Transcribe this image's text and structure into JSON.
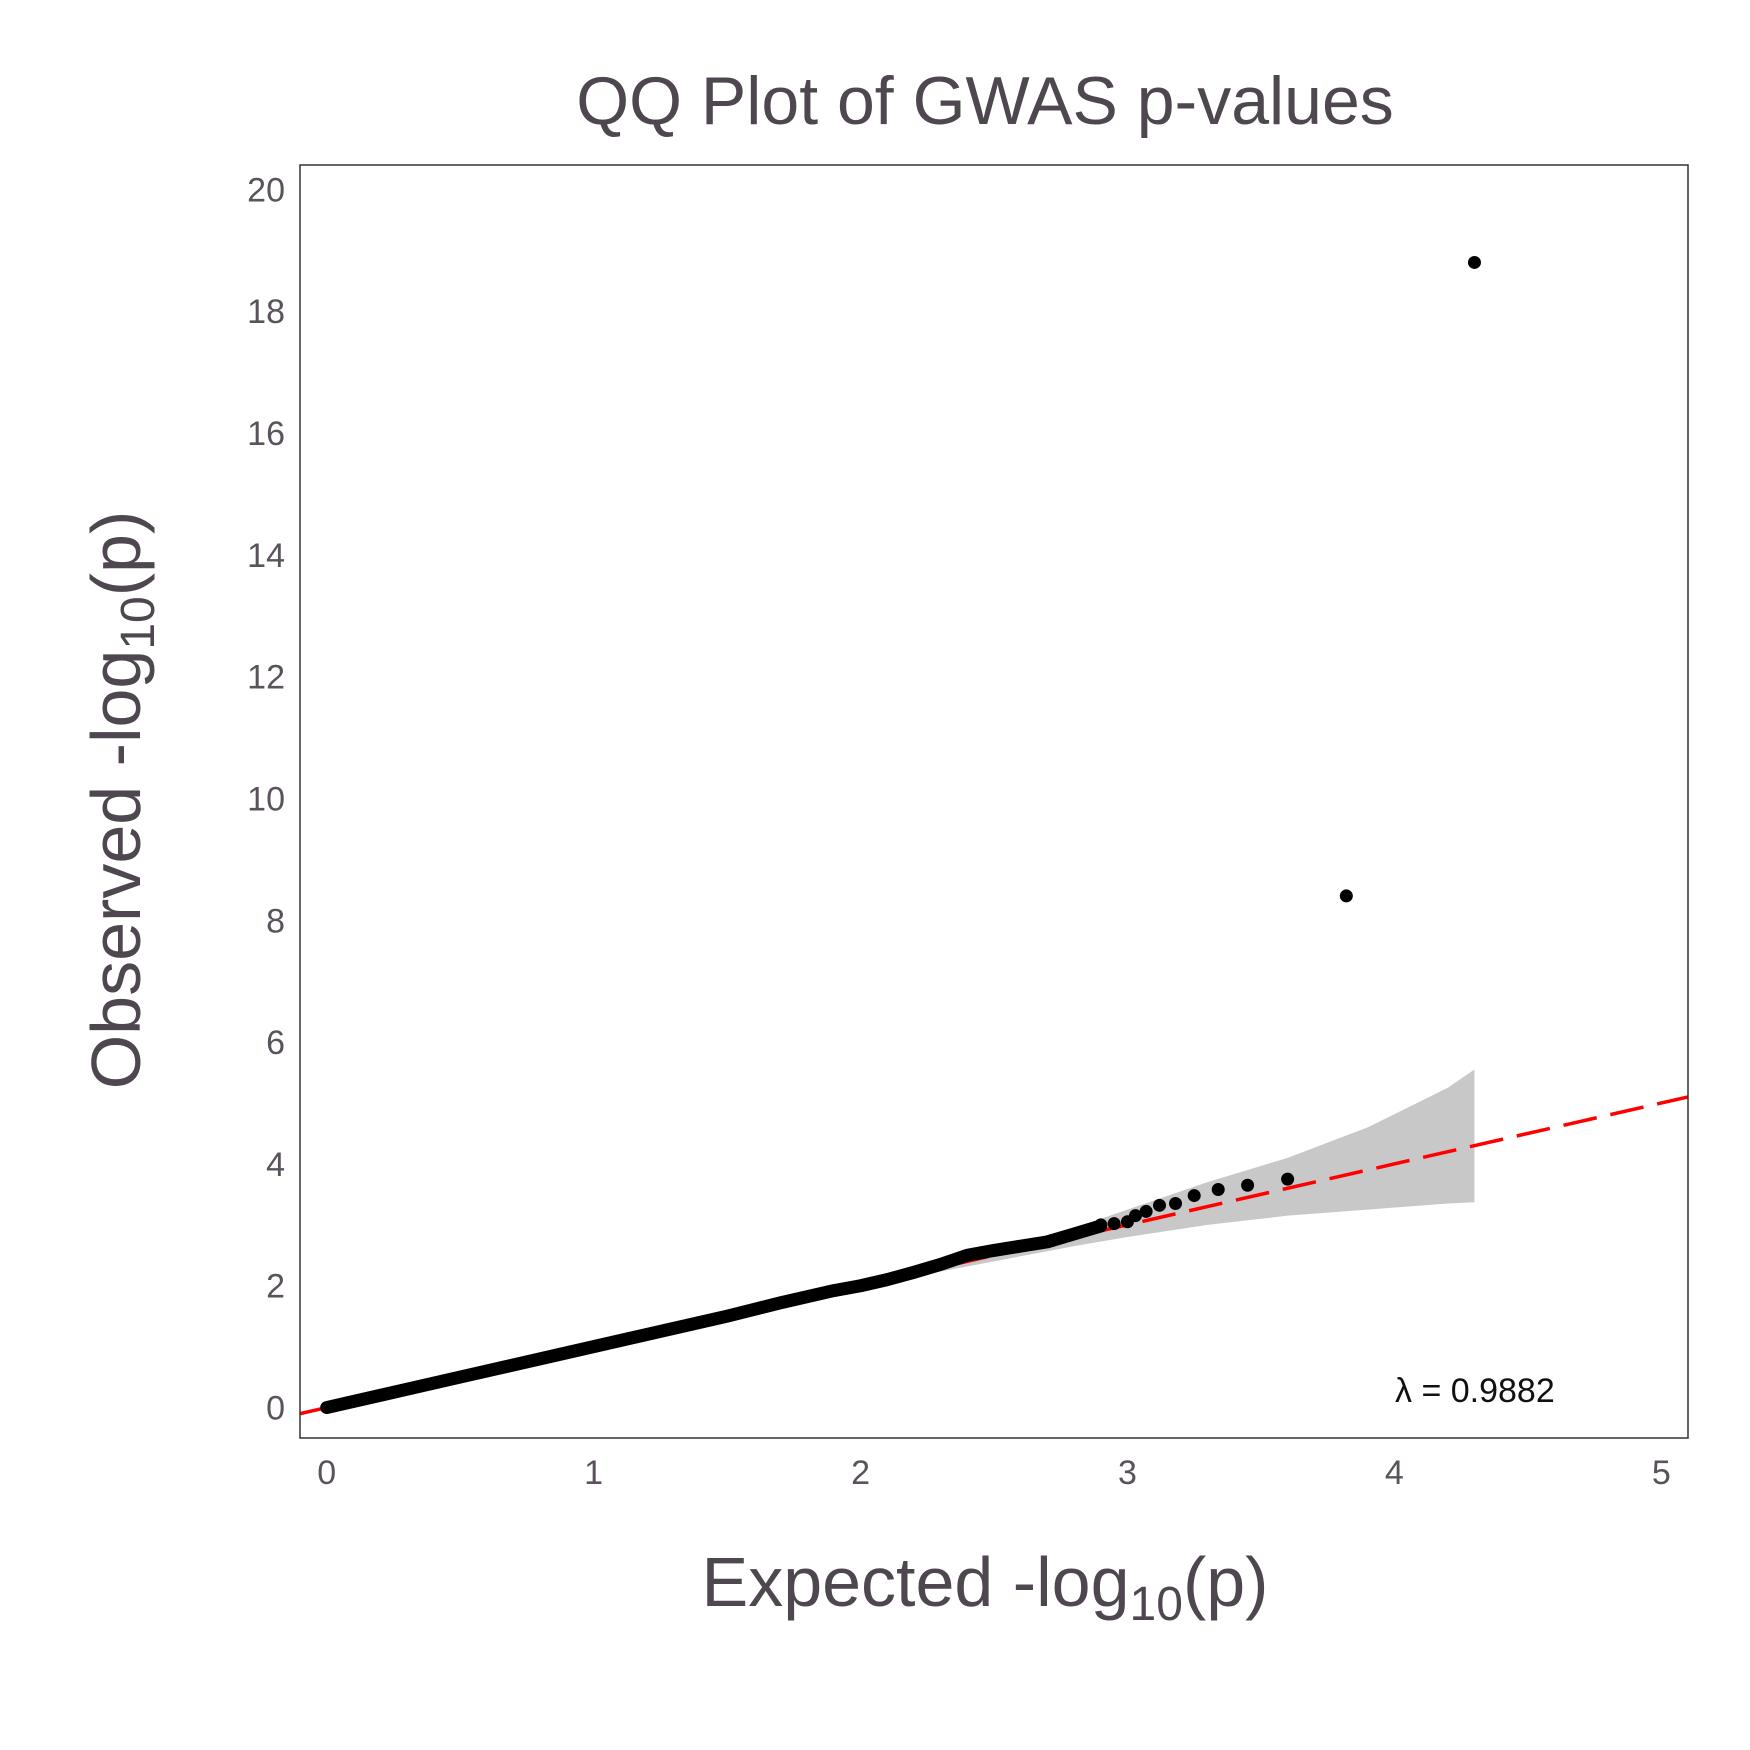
{
  "chart_data": {
    "type": "scatter",
    "title": "QQ Plot of GWAS p-values",
    "xlabel": "Expected -log10(p)",
    "ylabel": "Observed -log10(p)",
    "xlabel_parts": [
      "Expected -log",
      "10",
      "(p)"
    ],
    "ylabel_parts": [
      "Observed -log",
      "10",
      "(p)"
    ],
    "xlim": [
      -0.1,
      5.1
    ],
    "ylim": [
      -0.5,
      20.4
    ],
    "x_ticks": [
      0,
      1,
      2,
      3,
      4,
      5
    ],
    "y_ticks": [
      0,
      2,
      4,
      6,
      8,
      10,
      12,
      14,
      16,
      18,
      20
    ],
    "grid": false,
    "annotation": "λ = 0.9882",
    "reference_line": {
      "slope": 1,
      "intercept": 0,
      "color": "#ff0000",
      "style": "dashed"
    },
    "confidence_band": {
      "color": "#c8c8c8",
      "x": [
        2.2,
        2.5,
        2.8,
        3.0,
        3.3,
        3.6,
        3.9,
        4.2,
        4.3
      ],
      "lower": [
        2.15,
        2.4,
        2.65,
        2.8,
        3.0,
        3.15,
        3.25,
        3.35,
        3.37
      ],
      "upper": [
        2.25,
        2.6,
        2.95,
        3.25,
        3.7,
        4.1,
        4.6,
        5.25,
        5.55
      ]
    },
    "series": [
      {
        "color": "#000000",
        "x": [
          2.9,
          2.95,
          3.0,
          3.03,
          3.07,
          3.12,
          3.18,
          3.25,
          3.34,
          3.45,
          3.6,
          3.82,
          4.3
        ],
        "y": [
          3.0,
          3.02,
          3.05,
          3.15,
          3.22,
          3.32,
          3.35,
          3.48,
          3.58,
          3.65,
          3.75,
          8.4,
          18.8
        ]
      }
    ],
    "dense_trace": {
      "x": [
        0,
        0.5,
        1.0,
        1.5,
        1.7,
        1.9,
        2.0,
        2.1,
        2.2,
        2.3,
        2.4,
        2.5,
        2.6,
        2.7,
        2.8,
        2.9
      ],
      "y": [
        0,
        0.5,
        1.0,
        1.5,
        1.72,
        1.92,
        2.0,
        2.1,
        2.22,
        2.35,
        2.5,
        2.58,
        2.65,
        2.72,
        2.85,
        2.98
      ]
    }
  }
}
